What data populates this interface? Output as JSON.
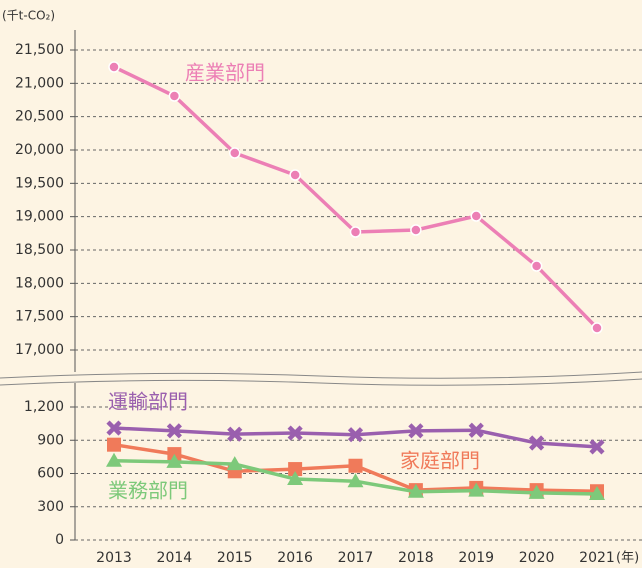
{
  "chart_data": [
    {
      "type": "line",
      "y_label": "(千t-CO₂)",
      "ylim": [
        17000,
        21500
      ],
      "yticks": [
        {
          "value": 17000,
          "label": "17,000"
        },
        {
          "value": 17500,
          "label": "17,500"
        },
        {
          "value": 18000,
          "label": "18,000"
        },
        {
          "value": 18500,
          "label": "18,500"
        },
        {
          "value": 19000,
          "label": "19,000"
        },
        {
          "value": 19500,
          "label": "19,500"
        },
        {
          "value": 20000,
          "label": "20,000"
        },
        {
          "value": 20500,
          "label": "20,500"
        },
        {
          "value": 21000,
          "label": "21,000"
        },
        {
          "value": 21500,
          "label": "21,500"
        }
      ],
      "grid": true,
      "series": [
        {
          "name": "産業部門",
          "color": "#ec7fb5",
          "marker": "circle",
          "values": [
            21245,
            20810,
            19955,
            19625,
            18770,
            18800,
            19010,
            18260,
            17330
          ]
        }
      ]
    },
    {
      "type": "line",
      "x_label": "(年)",
      "categories": [
        "2013",
        "2014",
        "2015",
        "2016",
        "2017",
        "2018",
        "2019",
        "2020",
        "2021"
      ],
      "ylim": [
        0,
        1200
      ],
      "yticks": [
        0,
        300,
        600,
        900,
        {
          "value": 1200,
          "label": "1,200"
        }
      ],
      "grid": true,
      "series": [
        {
          "name": "運輸部門",
          "color": "#9a5fae",
          "marker": "x",
          "values": [
            1010,
            985,
            955,
            965,
            950,
            985,
            990,
            875,
            840
          ]
        },
        {
          "name": "家庭部門",
          "color": "#f07a5a",
          "marker": "square",
          "values": [
            860,
            775,
            620,
            640,
            670,
            450,
            470,
            450,
            440
          ]
        },
        {
          "name": "業務部門",
          "color": "#7dc97a",
          "marker": "triangle",
          "values": [
            715,
            705,
            685,
            550,
            530,
            435,
            445,
            425,
            415
          ]
        }
      ]
    }
  ]
}
